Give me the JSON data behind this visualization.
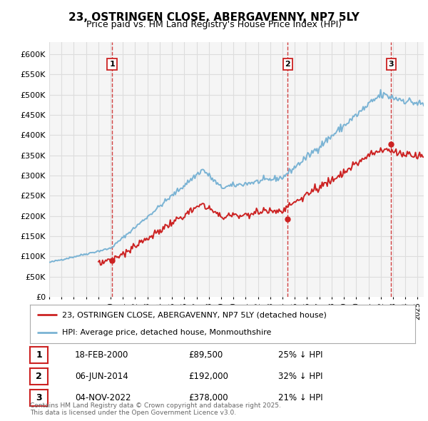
{
  "title": "23, OSTRINGEN CLOSE, ABERGAVENNY, NP7 5LY",
  "subtitle": "Price paid vs. HM Land Registry's House Price Index (HPI)",
  "ylabel_ticks": [
    "£0",
    "£50K",
    "£100K",
    "£150K",
    "£200K",
    "£250K",
    "£300K",
    "£350K",
    "£400K",
    "£450K",
    "£500K",
    "£550K",
    "£600K"
  ],
  "ytick_values": [
    0,
    50000,
    100000,
    150000,
    200000,
    250000,
    300000,
    350000,
    400000,
    450000,
    500000,
    550000,
    600000
  ],
  "ylim": [
    0,
    630000
  ],
  "xlim_start": 1995.0,
  "xlim_end": 2025.5,
  "background_color": "#ffffff",
  "grid_color": "#dddddd",
  "hpi_color": "#7ab3d4",
  "price_color": "#cc2222",
  "dashed_line_color": "#cc2222",
  "transactions": [
    {
      "num": 1,
      "date_x": 2000.12,
      "price": 89500,
      "label": "1",
      "date_str": "18-FEB-2000",
      "price_str": "£89,500",
      "pct_str": "25% ↓ HPI"
    },
    {
      "num": 2,
      "date_x": 2014.43,
      "price": 192000,
      "label": "2",
      "date_str": "06-JUN-2014",
      "price_str": "£192,000",
      "pct_str": "32% ↓ HPI"
    },
    {
      "num": 3,
      "date_x": 2022.84,
      "price": 378000,
      "label": "3",
      "date_str": "04-NOV-2022",
      "price_str": "£378,000",
      "pct_str": "21% ↓ HPI"
    }
  ],
  "legend_entries": [
    {
      "label": "23, OSTRINGEN CLOSE, ABERGAVENNY, NP7 5LY (detached house)",
      "color": "#cc2222"
    },
    {
      "label": "HPI: Average price, detached house, Monmouthshire",
      "color": "#7ab3d4"
    }
  ],
  "footer_text": "Contains HM Land Registry data © Crown copyright and database right 2025.\nThis data is licensed under the Open Government Licence v3.0.",
  "table_rows": [
    [
      "1",
      "18-FEB-2000",
      "£89,500",
      "25% ↓ HPI"
    ],
    [
      "2",
      "06-JUN-2014",
      "£192,000",
      "32% ↓ HPI"
    ],
    [
      "3",
      "04-NOV-2022",
      "£378,000",
      "21% ↓ HPI"
    ]
  ]
}
